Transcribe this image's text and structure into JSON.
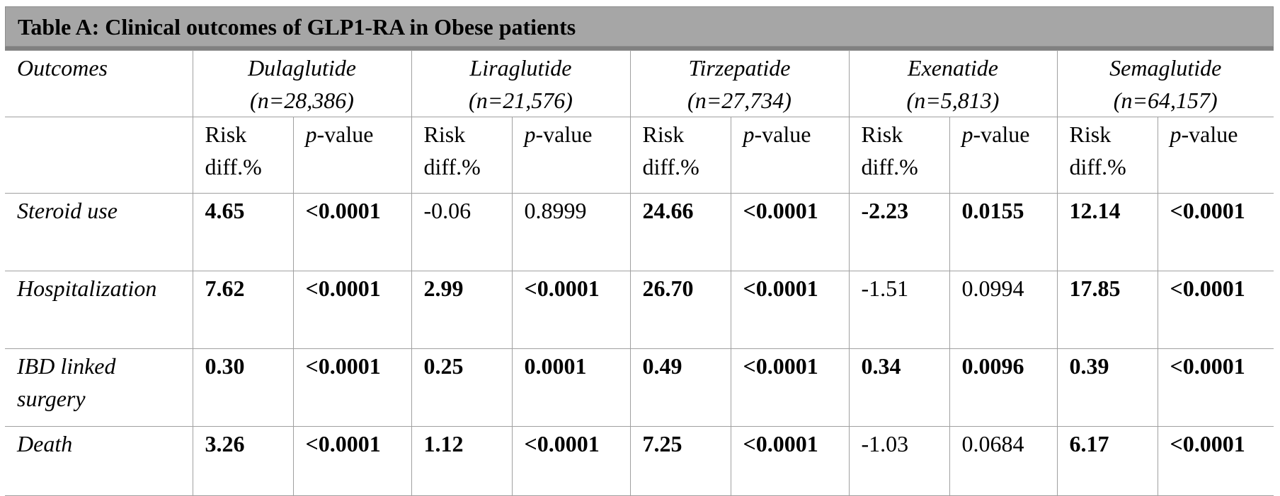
{
  "title": "Table A: Clinical outcomes of GLP1-RA in Obese patients",
  "header": {
    "outcomes_label": "Outcomes",
    "drugs": [
      {
        "name": "Dulaglutide",
        "n": "(n=28,386)"
      },
      {
        "name": "Liraglutide",
        "n": "(n=21,576)"
      },
      {
        "name": "Tirzepatide",
        "n": "(n=27,734)"
      },
      {
        "name": "Exenatide",
        "n": "(n=5,813)"
      },
      {
        "name": "Semaglutide",
        "n": "(n=64,157)"
      }
    ],
    "sub": {
      "risk_line1": "Risk",
      "risk_line2": "diff.%",
      "p_prefix": "p",
      "p_suffix": "-value"
    }
  },
  "rows": [
    {
      "outcome_line1": "Steroid use",
      "outcome_line2": "",
      "cells": [
        {
          "risk": "4.65",
          "p": "<0.0001",
          "bold": true
        },
        {
          "risk": "-0.06",
          "p": "0.8999",
          "bold": false
        },
        {
          "risk": "24.66",
          "p": "<0.0001",
          "bold": true
        },
        {
          "risk": "-2.23",
          "p": "0.0155",
          "bold": true
        },
        {
          "risk": "12.14",
          "p": "<0.0001",
          "bold": true
        }
      ]
    },
    {
      "outcome_line1": "Hospitalization",
      "outcome_line2": "",
      "cells": [
        {
          "risk": "7.62",
          "p": "<0.0001",
          "bold": true
        },
        {
          "risk": "2.99",
          "p": "<0.0001",
          "bold": true
        },
        {
          "risk": "26.70",
          "p": "<0.0001",
          "bold": true
        },
        {
          "risk": "-1.51",
          "p": "0.0994",
          "bold": false
        },
        {
          "risk": "17.85",
          "p": "<0.0001",
          "bold": true
        }
      ]
    },
    {
      "outcome_line1": "IBD linked",
      "outcome_line2": "surgery",
      "cells": [
        {
          "risk": "0.30",
          "p": "<0.0001",
          "bold": true
        },
        {
          "risk": "0.25",
          "p": "0.0001",
          "bold": true
        },
        {
          "risk": "0.49",
          "p": "<0.0001",
          "bold": true
        },
        {
          "risk": "0.34",
          "p": "0.0096",
          "bold": true
        },
        {
          "risk": "0.39",
          "p": "<0.0001",
          "bold": true
        }
      ]
    },
    {
      "outcome_line1": "Death",
      "outcome_line2": "",
      "cells": [
        {
          "risk": "3.26",
          "p": "<0.0001",
          "bold": true
        },
        {
          "risk": "1.12",
          "p": "<0.0001",
          "bold": true
        },
        {
          "risk": "7.25",
          "p": "<0.0001",
          "bold": true
        },
        {
          "risk": "-1.03",
          "p": "0.0684",
          "bold": false
        },
        {
          "risk": "6.17",
          "p": "<0.0001",
          "bold": true
        }
      ]
    }
  ]
}
